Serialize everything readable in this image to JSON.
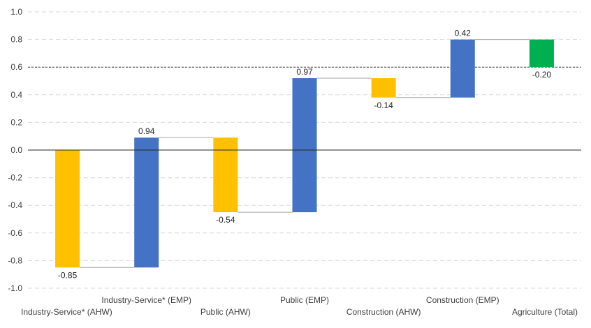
{
  "chart_data": {
    "type": "bar",
    "subtype": "waterfall",
    "title": "",
    "xlabel": "",
    "ylabel": "",
    "ylim": [
      -1.0,
      1.0
    ],
    "yticks": [
      "1.0",
      "0.8",
      "0.6",
      "0.4",
      "0.2",
      "0.0",
      "-0.2",
      "-0.4",
      "-0.6",
      "-0.8",
      "-1.0"
    ],
    "grid": true,
    "legend": "none",
    "reference_line": 0.6,
    "categories": [
      "Industry-Service* (AHW)",
      "Industry-Service* (EMP)",
      "Public (AHW)",
      "Public (EMP)",
      "Construction (AHW)",
      "Construction (EMP)",
      "Agriculture (Total)"
    ],
    "values": [
      -0.85,
      0.94,
      -0.54,
      0.97,
      -0.14,
      0.42,
      -0.2
    ],
    "value_labels": [
      "-0.85",
      "0.94",
      "-0.54",
      "0.97",
      "-0.14",
      "0.42",
      "-0.20"
    ],
    "colors": {
      "ahw": "#FFC000",
      "emp": "#4472C4",
      "total": "#00B050"
    },
    "bar_color_keys": [
      "ahw",
      "emp",
      "ahw",
      "emp",
      "ahw",
      "emp",
      "total"
    ]
  }
}
